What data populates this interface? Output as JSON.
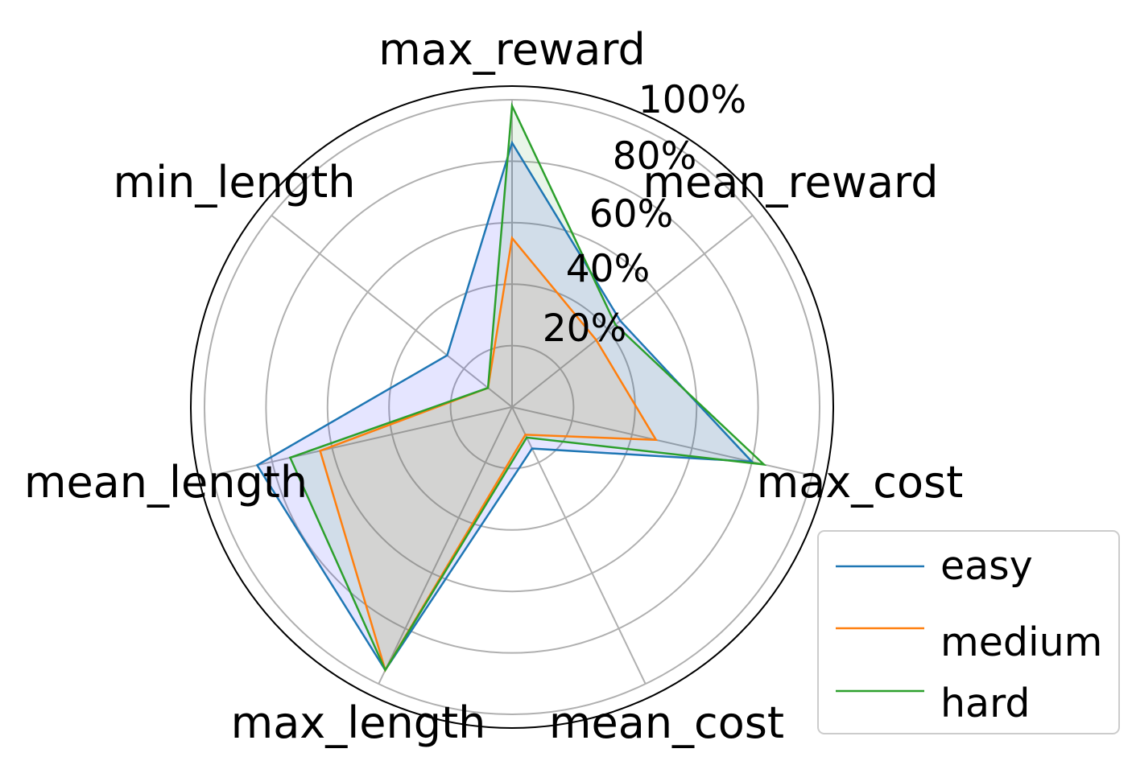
{
  "chart_data": {
    "type": "radar",
    "title": "",
    "axes": [
      "max_reward",
      "mean_reward",
      "max_cost",
      "mean_cost",
      "max_length",
      "mean_length",
      "min_length"
    ],
    "radial_ticks": [
      20,
      40,
      60,
      80,
      100
    ],
    "radial_tick_labels": [
      "20%",
      "40%",
      "60%",
      "80%",
      "100%"
    ],
    "rlim": [
      0,
      100
    ],
    "grid": true,
    "legend_position": "bottom-right",
    "series": [
      {
        "name": "easy",
        "color": "#1f77b4",
        "fill": "#0000ff",
        "values": [
          86,
          45,
          80,
          15,
          95,
          85,
          27
        ]
      },
      {
        "name": "medium",
        "color": "#ff7f0e",
        "fill": "#ff7f0e",
        "values": [
          55,
          35,
          48,
          10,
          95,
          64,
          10
        ]
      },
      {
        "name": "hard",
        "color": "#2ca02c",
        "fill": "#2ca02c",
        "values": [
          98,
          43,
          84,
          11,
          95,
          74,
          10
        ]
      }
    ]
  }
}
